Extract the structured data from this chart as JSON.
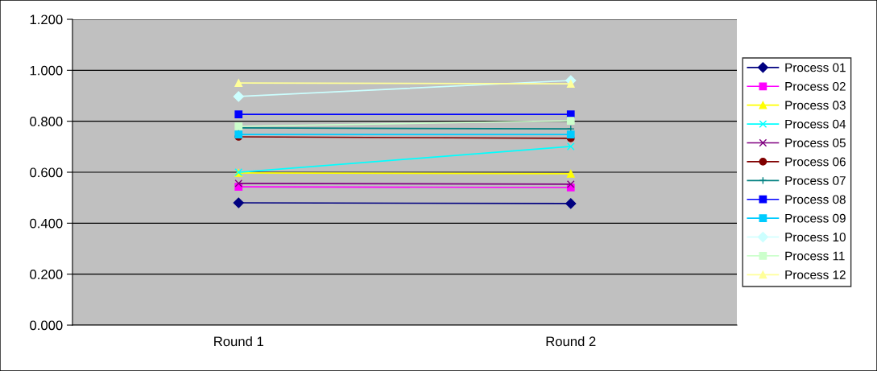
{
  "chart_data": {
    "type": "line",
    "categories": [
      "Round 1",
      "Round 2"
    ],
    "ylim": [
      0,
      1.2
    ],
    "yticks": [
      {
        "value": 0,
        "label": "0.000"
      },
      {
        "value": 0.2,
        "label": "0.200"
      },
      {
        "value": 0.4,
        "label": "0.400"
      },
      {
        "value": 0.6,
        "label": "0.600"
      },
      {
        "value": 0.8,
        "label": "0.800"
      },
      {
        "value": 1.0,
        "label": "1.000"
      },
      {
        "value": 1.2,
        "label": "1.200"
      }
    ],
    "grid": "y",
    "legend": "right",
    "series": [
      {
        "name": "Process 01",
        "color": "#000080",
        "marker": "diamond",
        "values": [
          0.48,
          0.477
        ]
      },
      {
        "name": "Process 02",
        "color": "#ff00ff",
        "marker": "square",
        "values": [
          0.543,
          0.54
        ]
      },
      {
        "name": "Process 03",
        "color": "#ffff00",
        "marker": "triangle",
        "values": [
          0.597,
          0.594
        ]
      },
      {
        "name": "Process 04",
        "color": "#00ffff",
        "marker": "cross",
        "values": [
          0.6,
          0.701
        ]
      },
      {
        "name": "Process 05",
        "color": "#800080",
        "marker": "cross",
        "values": [
          0.556,
          0.553
        ]
      },
      {
        "name": "Process 06",
        "color": "#800000",
        "marker": "circle",
        "values": [
          0.739,
          0.733
        ]
      },
      {
        "name": "Process 07",
        "color": "#008080",
        "marker": "plus",
        "values": [
          0.774,
          0.77
        ]
      },
      {
        "name": "Process 08",
        "color": "#0000ff",
        "marker": "square",
        "values": [
          0.827,
          0.827
        ]
      },
      {
        "name": "Process 09",
        "color": "#00ccff",
        "marker": "square",
        "values": [
          0.748,
          0.748
        ]
      },
      {
        "name": "Process 10",
        "color": "#ccffff",
        "marker": "diamond",
        "values": [
          0.897,
          0.96
        ]
      },
      {
        "name": "Process 11",
        "color": "#ccffcc",
        "marker": "square",
        "values": [
          0.78,
          0.802
        ]
      },
      {
        "name": "Process 12",
        "color": "#ffff99",
        "marker": "triangle",
        "values": [
          0.95,
          0.947
        ]
      }
    ]
  }
}
